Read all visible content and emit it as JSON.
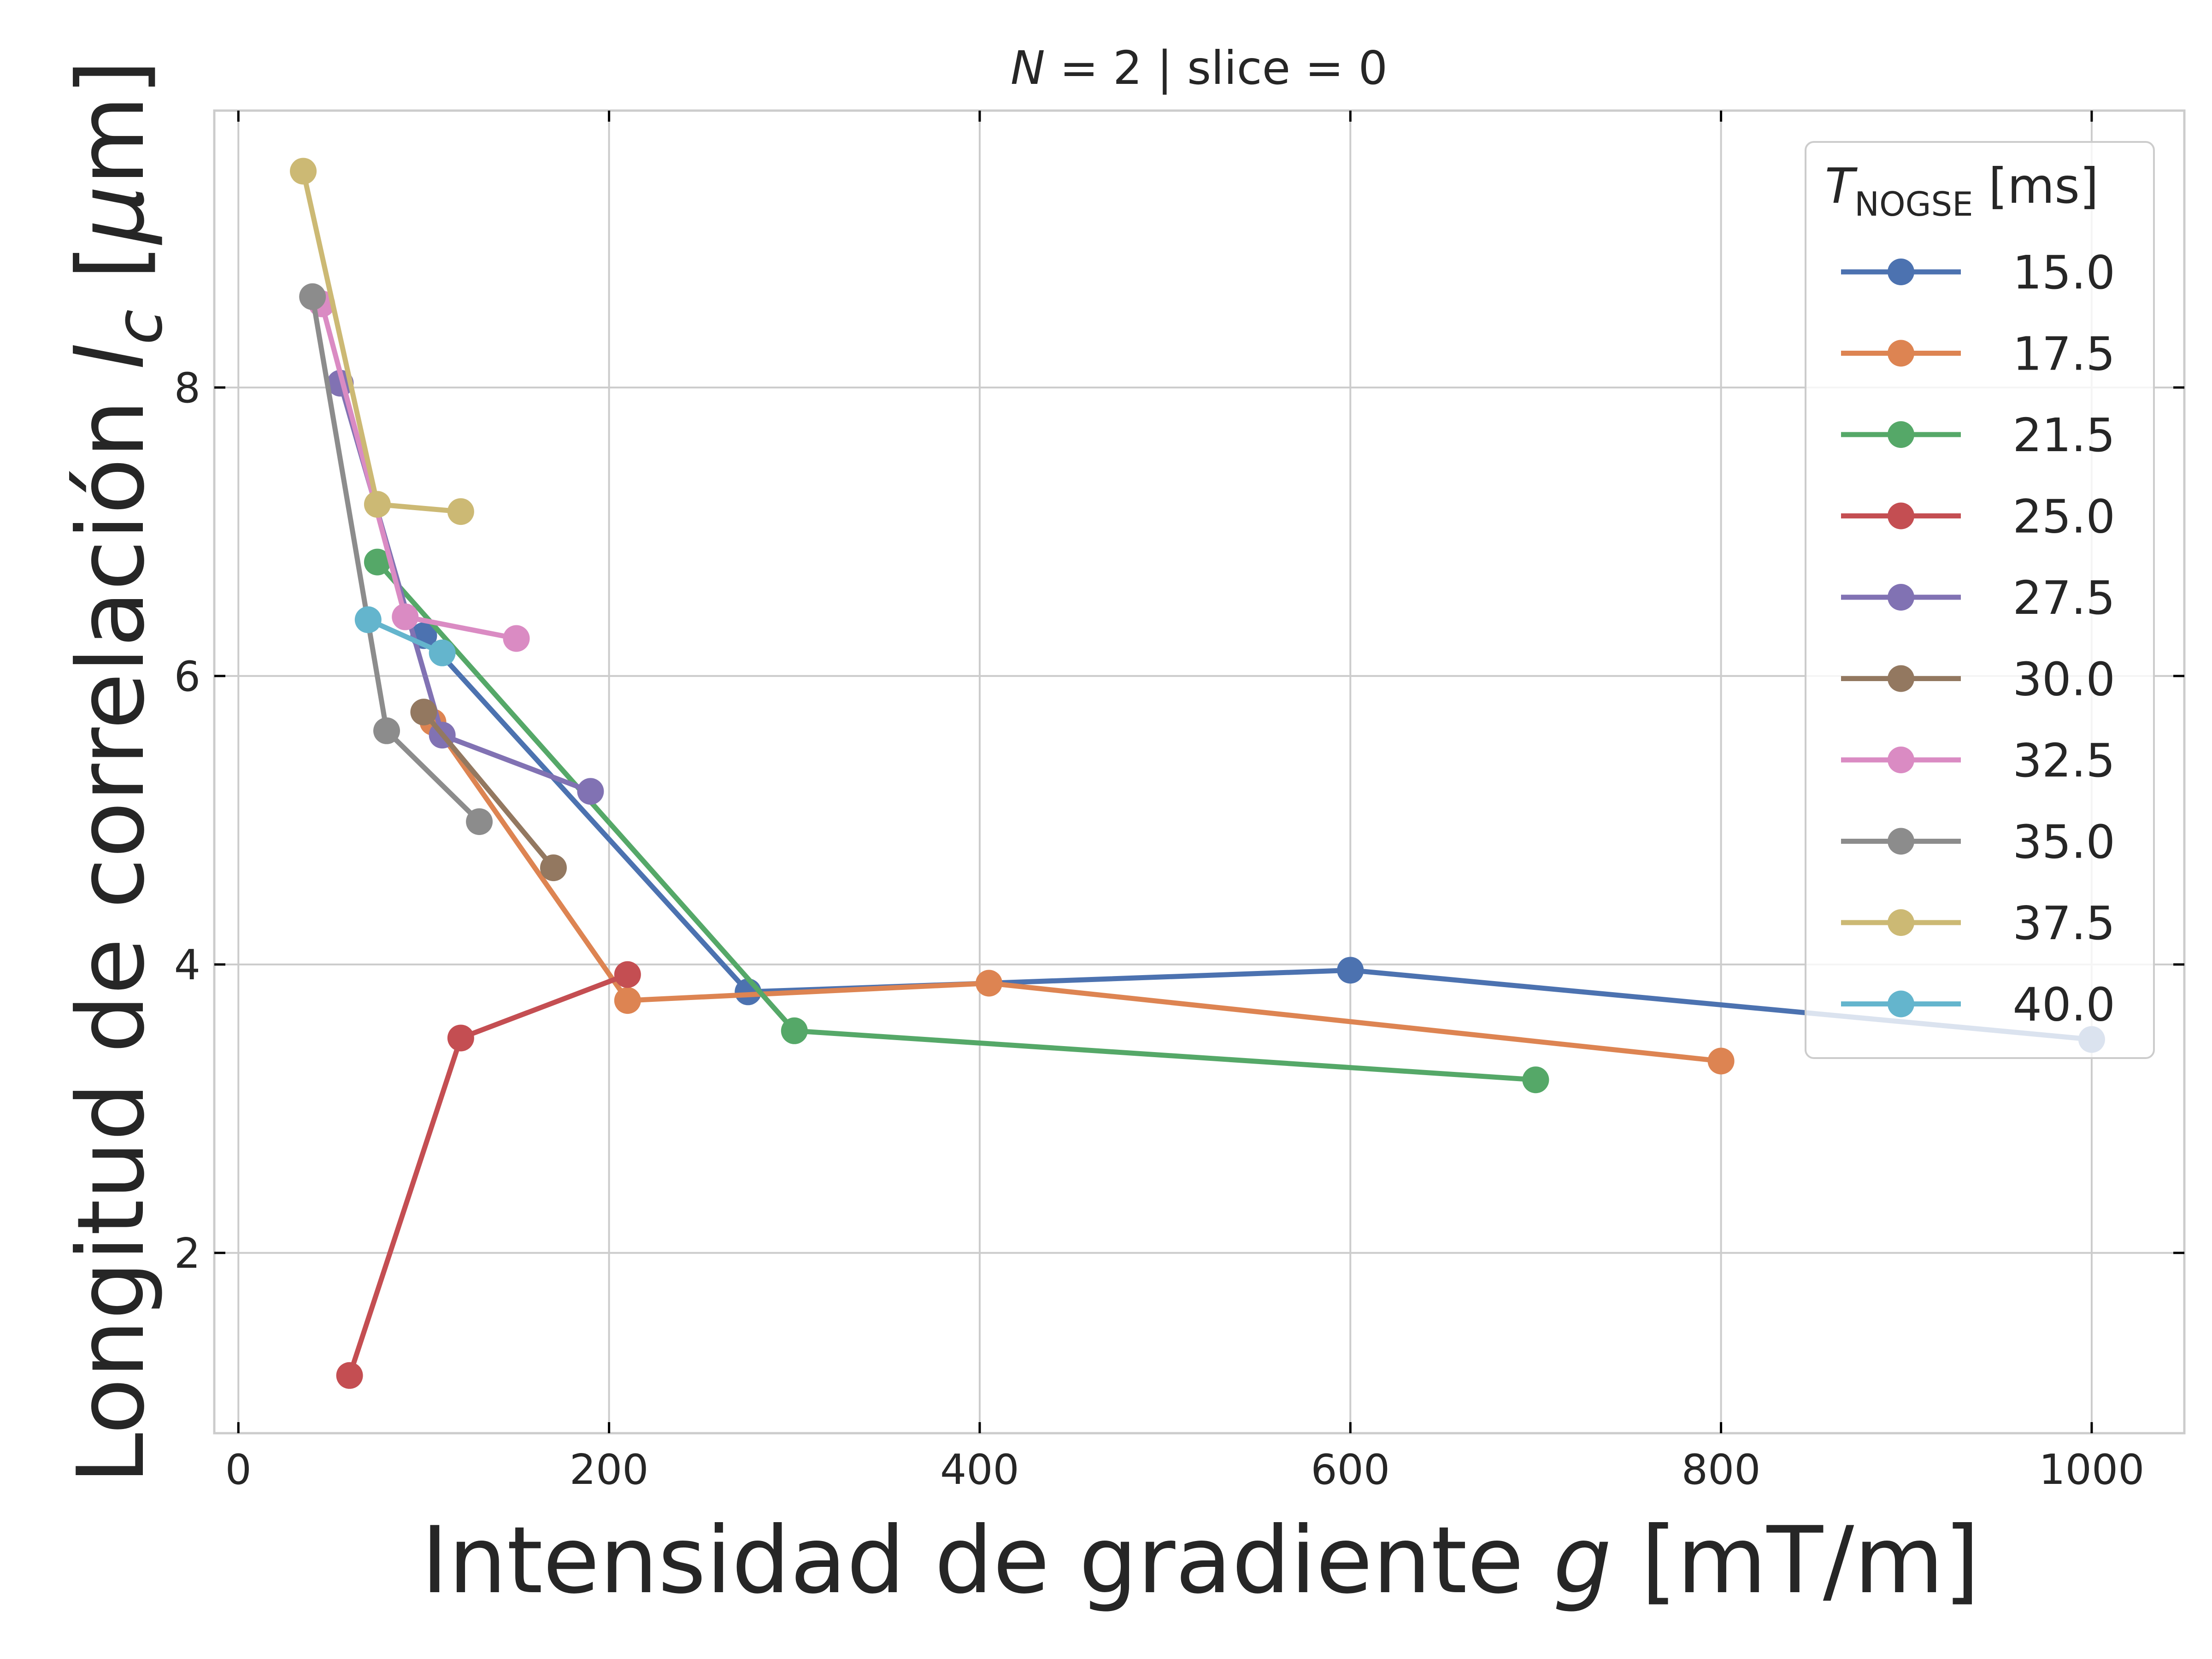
{
  "chart_data": {
    "type": "line",
    "title": "N = 2 | slice = 0",
    "title_parts": [
      "N",
      " = 2 | slice = 0"
    ],
    "xlabel": "Intensidad de gradiente g [mT/m]",
    "xlabel_parts": [
      "Intensidad de gradiente ",
      "g",
      " [mT/m]"
    ],
    "ylabel": "Longitud de correlación l_c [μm]",
    "ylabel_parts": [
      "Longitud de correlación ",
      "l",
      "c",
      " [",
      "μ",
      "m]"
    ],
    "xlim": [
      -13,
      1050
    ],
    "ylim": [
      0.75,
      9.92
    ],
    "xticks": [
      0,
      200,
      400,
      600,
      800,
      1000
    ],
    "xtick_labels": [
      "0",
      "200",
      "400",
      "600",
      "800",
      "1000"
    ],
    "yticks": [
      2,
      4,
      6,
      8
    ],
    "ytick_labels": [
      "2",
      "4",
      "6",
      "8"
    ],
    "grid": true,
    "legend_title": "T_NOGSE [ms]",
    "legend_title_parts": [
      "T",
      "NOGSE",
      " [ms]"
    ],
    "legend_position": "top-right",
    "series": [
      {
        "name": "15.0",
        "color": "#4c72b0",
        "x": [
          100,
          275,
          600,
          1000
        ],
        "y": [
          6.28,
          3.81,
          3.96,
          3.48
        ]
      },
      {
        "name": "17.5",
        "color": "#dd8452",
        "x": [
          105,
          210,
          405,
          800
        ],
        "y": [
          5.68,
          3.75,
          3.87,
          3.33
        ]
      },
      {
        "name": "21.5",
        "color": "#55a868",
        "x": [
          75,
          300,
          700
        ],
        "y": [
          6.79,
          3.54,
          3.2
        ]
      },
      {
        "name": "25.0",
        "color": "#c44e52",
        "x": [
          60,
          120,
          210
        ],
        "y": [
          1.15,
          3.49,
          3.93
        ]
      },
      {
        "name": "27.5",
        "color": "#8172b3",
        "x": [
          55,
          110,
          190
        ],
        "y": [
          8.03,
          5.59,
          5.2
        ]
      },
      {
        "name": "30.0",
        "color": "#937860",
        "x": [
          100,
          170
        ],
        "y": [
          5.75,
          4.67
        ]
      },
      {
        "name": "32.5",
        "color": "#da8bc3",
        "x": [
          45,
          90,
          150
        ],
        "y": [
          8.58,
          6.41,
          6.26
        ]
      },
      {
        "name": "35.0",
        "color": "#8c8c8c",
        "x": [
          40,
          80,
          130
        ],
        "y": [
          8.63,
          5.62,
          4.99
        ]
      },
      {
        "name": "37.5",
        "color": "#ccb974",
        "x": [
          35,
          75,
          120
        ],
        "y": [
          9.5,
          7.19,
          7.14
        ]
      },
      {
        "name": "40.0",
        "color": "#64b5cd",
        "x": [
          70,
          110
        ],
        "y": [
          6.39,
          6.16
        ]
      }
    ]
  }
}
